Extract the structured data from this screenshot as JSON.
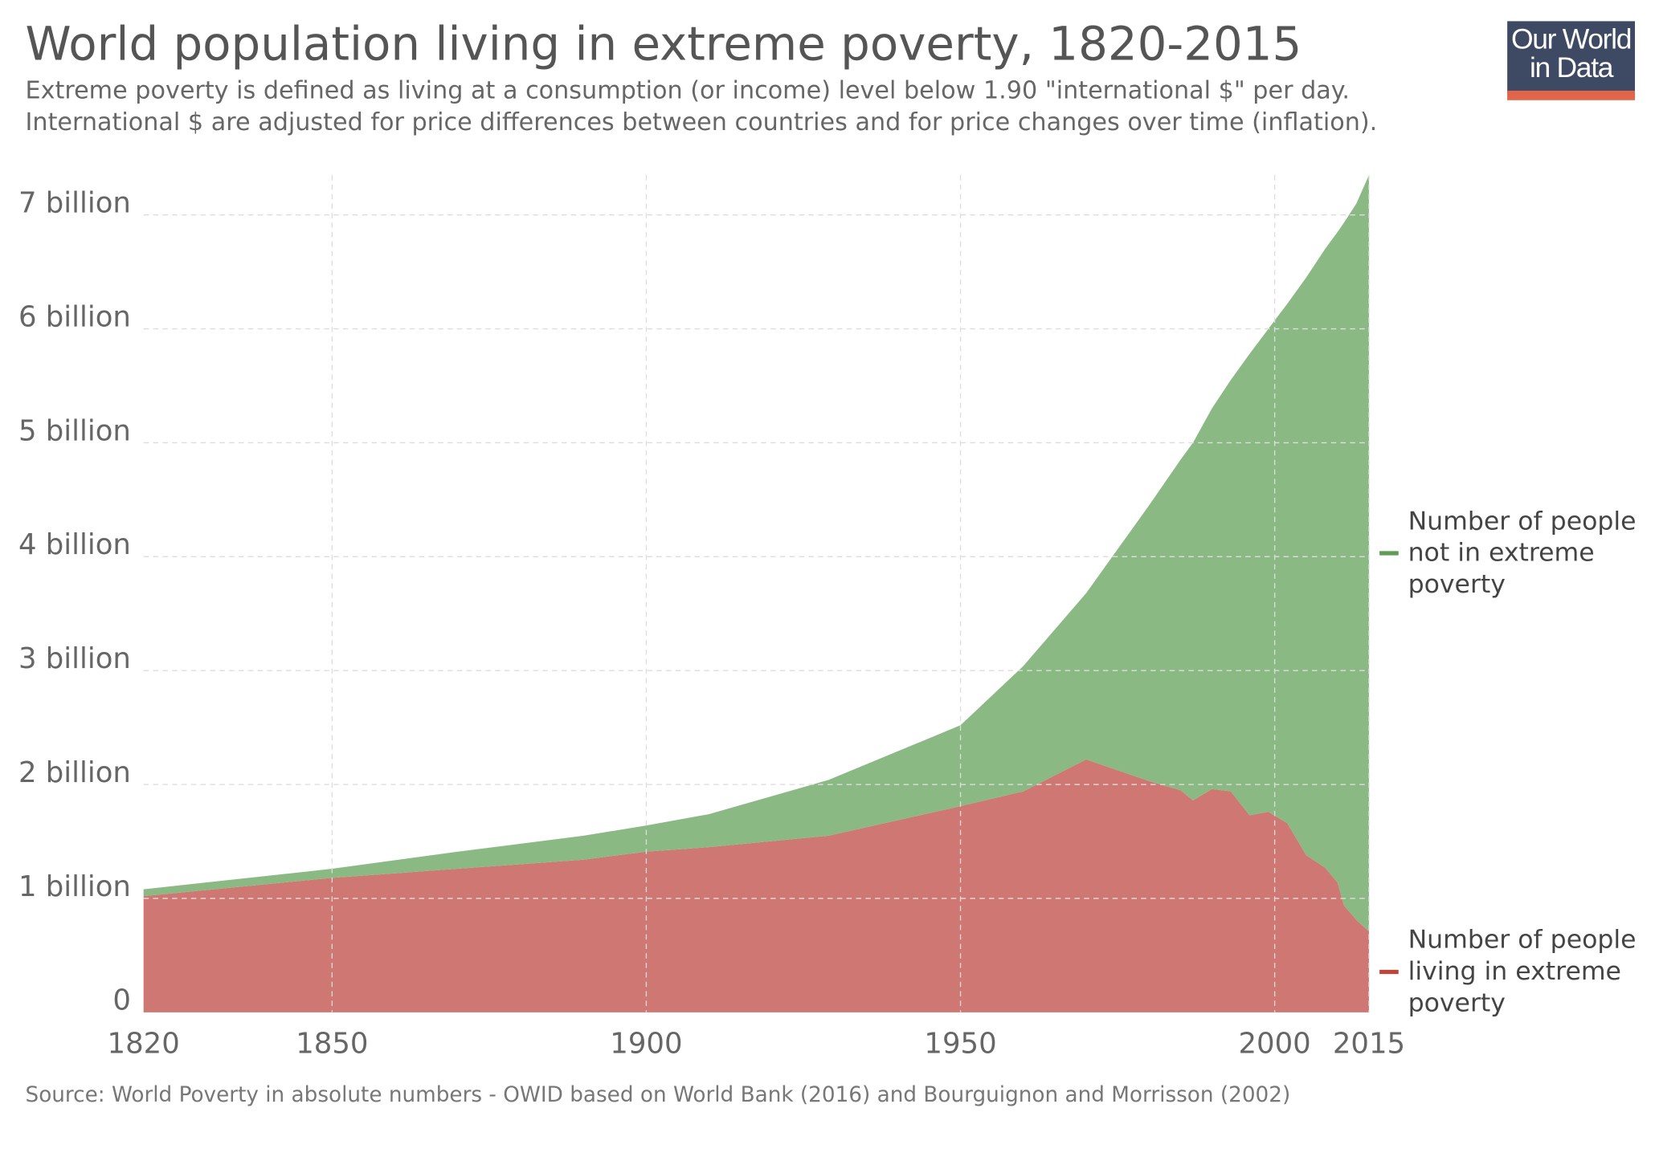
{
  "chart_data": {
    "type": "stacked-area",
    "title": "World population living in extreme poverty, 1820-2015",
    "subtitle": [
      "Extreme poverty is defined as living at a consumption (or income) level below 1.90 \"international $\" per day.",
      "International $ are adjusted for price differences between countries and for price changes over time (inflation)."
    ],
    "source": "Source: World Poverty in absolute numbers - OWID based on World Bank (2016) and Bourguignon and Morrisson (2002)",
    "logo": "Our World in Data",
    "x": [
      1820,
      1850,
      1870,
      1890,
      1900,
      1910,
      1929,
      1950,
      1960,
      1970,
      1980,
      1985,
      1987,
      1990,
      1993,
      1996,
      1999,
      2002,
      2005,
      2008,
      2010,
      2011,
      2013,
      2015
    ],
    "series": [
      {
        "name": "Number of people living in extreme poverty",
        "color": "#cc706b",
        "legend_color": "#c0443a",
        "values": [
          1.02,
          1.18,
          1.26,
          1.34,
          1.41,
          1.45,
          1.55,
          1.81,
          1.94,
          2.22,
          2.03,
          1.95,
          1.86,
          1.96,
          1.94,
          1.73,
          1.76,
          1.66,
          1.38,
          1.27,
          1.14,
          0.94,
          0.81,
          0.71
        ]
      },
      {
        "name": "Number of people not in extreme poverty",
        "color": "#84b57d",
        "legend_color": "#5d9c52",
        "values": [
          0.06,
          0.08,
          0.15,
          0.21,
          0.23,
          0.29,
          0.49,
          0.71,
          1.1,
          1.46,
          2.42,
          2.9,
          3.14,
          3.34,
          3.61,
          4.05,
          4.24,
          4.56,
          5.07,
          5.43,
          5.71,
          5.99,
          6.29,
          6.64
        ]
      }
    ],
    "xlim": [
      1820,
      2015
    ],
    "xticks": [
      1820,
      1850,
      1900,
      1950,
      2000,
      2015
    ],
    "ylim": [
      0,
      7.35
    ],
    "yticks": [
      0,
      {
        "value": 1,
        "label": "1 billion"
      },
      {
        "value": 2,
        "label": "2 billion"
      },
      {
        "value": 3,
        "label": "3 billion"
      },
      {
        "value": 4,
        "label": "4 billion"
      },
      {
        "value": 5,
        "label": "5 billion"
      },
      {
        "value": 6,
        "label": "6 billion"
      },
      {
        "value": 7,
        "label": "7 billion"
      }
    ],
    "grid": true
  }
}
